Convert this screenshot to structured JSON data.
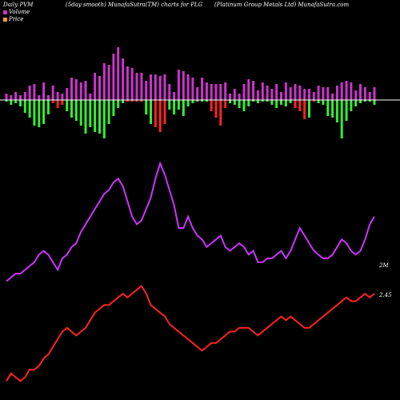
{
  "header": {
    "left": "Daily PVM",
    "center": "(5day smooth) MunafaSutra(TM) charts for PLG",
    "right": "(Platinum Group Metals Ltd) MunafaSutra.com"
  },
  "legend": {
    "volume_label": "Volume",
    "price_label": "Price"
  },
  "end_labels": {
    "volume": "2M",
    "price": "2.45"
  },
  "colors": {
    "background": "#000000",
    "volume_bar": "#cc33cc",
    "pvm_up": "#33ee33",
    "pvm_down": "#ff2222",
    "volume_line": "#cc33ff",
    "price_line": "#ff2222",
    "baseline": "#ffffff"
  },
  "chart_data": {
    "type": "bar",
    "count": 80,
    "volume_bars": [
      8,
      6,
      10,
      6,
      10,
      18,
      20,
      6,
      22,
      6,
      18,
      10,
      8,
      15,
      28,
      26,
      22,
      24,
      8,
      34,
      30,
      46,
      44,
      58,
      66,
      52,
      42,
      40,
      34,
      34,
      24,
      32,
      32,
      30,
      32,
      20,
      10,
      38,
      36,
      32,
      28,
      16,
      28,
      22,
      20,
      20,
      20,
      22,
      8,
      14,
      8,
      20,
      26,
      24,
      12,
      22,
      18,
      14,
      20,
      10,
      22,
      16,
      20,
      18,
      14,
      14,
      10,
      18,
      16,
      16,
      8,
      18,
      22,
      24,
      22,
      12,
      20,
      16,
      10,
      16
    ],
    "pvm_bars": [
      -2,
      -6,
      -4,
      -8,
      -16,
      -22,
      -32,
      -34,
      -30,
      -18,
      -4,
      -10,
      -6,
      -14,
      -22,
      -26,
      -32,
      -42,
      -34,
      -40,
      -42,
      -48,
      -30,
      -20,
      -10,
      -4,
      -2,
      -2,
      -2,
      -2,
      -18,
      -30,
      -34,
      -40,
      -30,
      -12,
      -18,
      -12,
      -20,
      -8,
      -4,
      -2,
      -2,
      -2,
      -14,
      -22,
      -32,
      -10,
      -4,
      -6,
      -10,
      -14,
      -8,
      -2,
      -4,
      -2,
      -2,
      -6,
      -10,
      -6,
      -8,
      -4,
      -10,
      -14,
      -24,
      -22,
      -2,
      -4,
      -6,
      -20,
      -22,
      -28,
      -48,
      -26,
      -14,
      -8,
      -4,
      -2,
      -2,
      -6
    ],
    "pvm_colors": [
      "g",
      "g",
      "g",
      "g",
      "g",
      "g",
      "g",
      "g",
      "g",
      "g",
      "r",
      "r",
      "r",
      "g",
      "g",
      "g",
      "g",
      "g",
      "g",
      "g",
      "g",
      "g",
      "g",
      "g",
      "g",
      "g",
      "r",
      "r",
      "r",
      "r",
      "g",
      "g",
      "r",
      "r",
      "r",
      "g",
      "g",
      "g",
      "g",
      "g",
      "g",
      "g",
      "g",
      "g",
      "r",
      "r",
      "r",
      "r",
      "g",
      "g",
      "g",
      "g",
      "g",
      "g",
      "g",
      "g",
      "g",
      "g",
      "g",
      "g",
      "g",
      "g",
      "r",
      "r",
      "r",
      "g",
      "r",
      "g",
      "g",
      "g",
      "g",
      "g",
      "g",
      "g",
      "g",
      "g",
      "g",
      "g",
      "g",
      "g"
    ],
    "volume_line": [
      6,
      7,
      8,
      8,
      9,
      10,
      11,
      13,
      14,
      13,
      11,
      9,
      12,
      13,
      15,
      16,
      19,
      21,
      23,
      25,
      27,
      29,
      30,
      32,
      33,
      31,
      27,
      23,
      21,
      22,
      25,
      28,
      33,
      37,
      34,
      30,
      26,
      20,
      20,
      23,
      20,
      18,
      17,
      15,
      16,
      17,
      18,
      15,
      14,
      15,
      16,
      15,
      13,
      14,
      11,
      11,
      12,
      12,
      13,
      14,
      12,
      14,
      17,
      20,
      18,
      16,
      14,
      13,
      12,
      12,
      13,
      15,
      17,
      16,
      14,
      13,
      14,
      17,
      21,
      23
    ],
    "price_line": [
      5,
      7,
      6,
      5,
      6,
      8,
      8,
      9,
      11,
      12,
      14,
      16,
      18,
      19,
      18,
      17,
      18,
      19,
      21,
      23,
      24,
      25,
      25,
      26,
      27,
      28,
      27,
      28,
      29,
      30,
      28,
      25,
      24,
      23,
      22,
      20,
      19,
      18,
      17,
      16,
      15,
      14,
      13,
      14,
      15,
      15,
      16,
      17,
      18,
      18,
      19,
      19,
      19,
      18,
      17,
      18,
      19,
      20,
      21,
      22,
      21,
      22,
      21,
      20,
      19,
      19,
      20,
      21,
      22,
      23,
      24,
      25,
      26,
      27,
      26,
      26,
      27,
      28,
      27,
      28
    ],
    "xlabel": "",
    "ylabel": ""
  }
}
